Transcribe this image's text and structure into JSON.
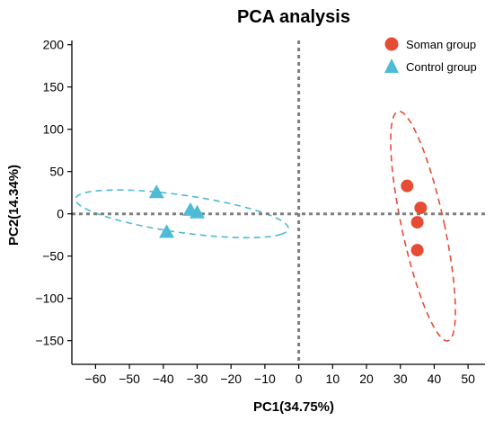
{
  "chart_data": {
    "type": "scatter",
    "title": "PCA analysis",
    "xlabel": "PC1(34.75%)",
    "ylabel": "PC2(14.34%)",
    "xlim": [
      -67,
      55
    ],
    "ylim": [
      -178,
      205
    ],
    "xticks": [
      -60,
      -50,
      -40,
      -30,
      -20,
      -10,
      0,
      10,
      20,
      30,
      40,
      50
    ],
    "yticks": [
      -150,
      -100,
      -50,
      0,
      50,
      100,
      150,
      200
    ],
    "tick_labels_x": [
      "−60",
      "−50",
      "−40",
      "−30",
      "−20",
      "−10",
      "0",
      "10",
      "20",
      "30",
      "40",
      "50"
    ],
    "tick_labels_y": [
      "−150",
      "−100",
      "−50",
      "0",
      "50",
      "100",
      "150",
      "200"
    ],
    "grid": false,
    "reference_lines": {
      "x": 0,
      "y": 0,
      "style": "dotted",
      "color": "#7f7f7f"
    },
    "legend": {
      "position": "top-right"
    },
    "series": [
      {
        "name": "Soman group",
        "marker": "circle",
        "color": "#e64b35",
        "points": [
          [
            32,
            33
          ],
          [
            36,
            7
          ],
          [
            35,
            -10
          ],
          [
            35,
            -43
          ]
        ],
        "ellipse": {
          "cx": 36.7,
          "cy": -14.5,
          "rx": 6.4,
          "ry": 136,
          "angle_deg": 3
        }
      },
      {
        "name": "Control group",
        "marker": "triangle",
        "color": "#4dbbd5",
        "points": [
          [
            -42,
            25
          ],
          [
            -32,
            4
          ],
          [
            -30,
            1
          ],
          [
            -39,
            -22
          ]
        ],
        "ellipse": {
          "cx": -34.5,
          "cy": 0,
          "rx": 38,
          "ry": 18.5,
          "angle_deg": -40
        }
      }
    ]
  }
}
